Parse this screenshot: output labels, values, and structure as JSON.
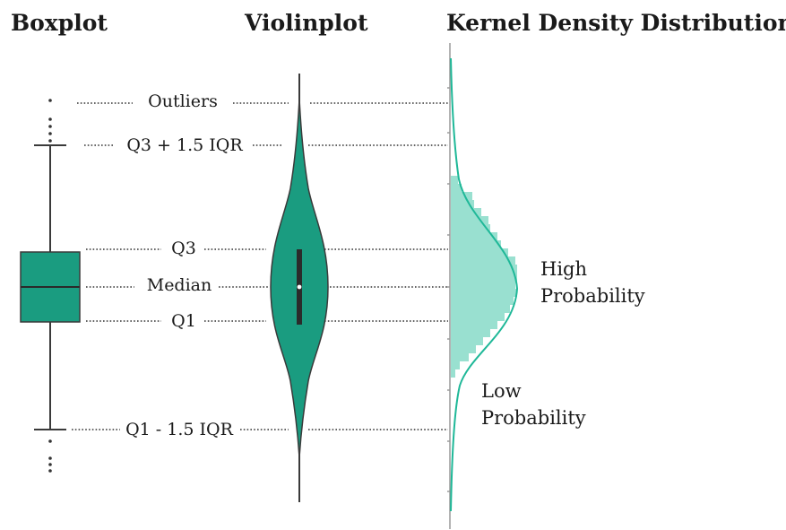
{
  "titles": {
    "boxplot": "Boxplot",
    "violinplot": "Violinplot",
    "kde": "Kernel Density Distribution"
  },
  "labels": {
    "outliers": "Outliers",
    "upper_whisker": "Q3 + 1.5 IQR",
    "q3": "Q3",
    "median": "Median",
    "q1": "Q1",
    "lower_whisker": "Q1 - 1.5 IQR"
  },
  "probability": {
    "high_line1": "High",
    "high_line2": "Probability",
    "low_line1": "Low",
    "low_line2": "Probability"
  },
  "colors": {
    "box_fill": "#1a9c80",
    "violin_fill": "#1a9c80",
    "hist_fill": "#99e0d0",
    "kde_line": "#1fb898",
    "outline": "#3a3a3a"
  }
}
